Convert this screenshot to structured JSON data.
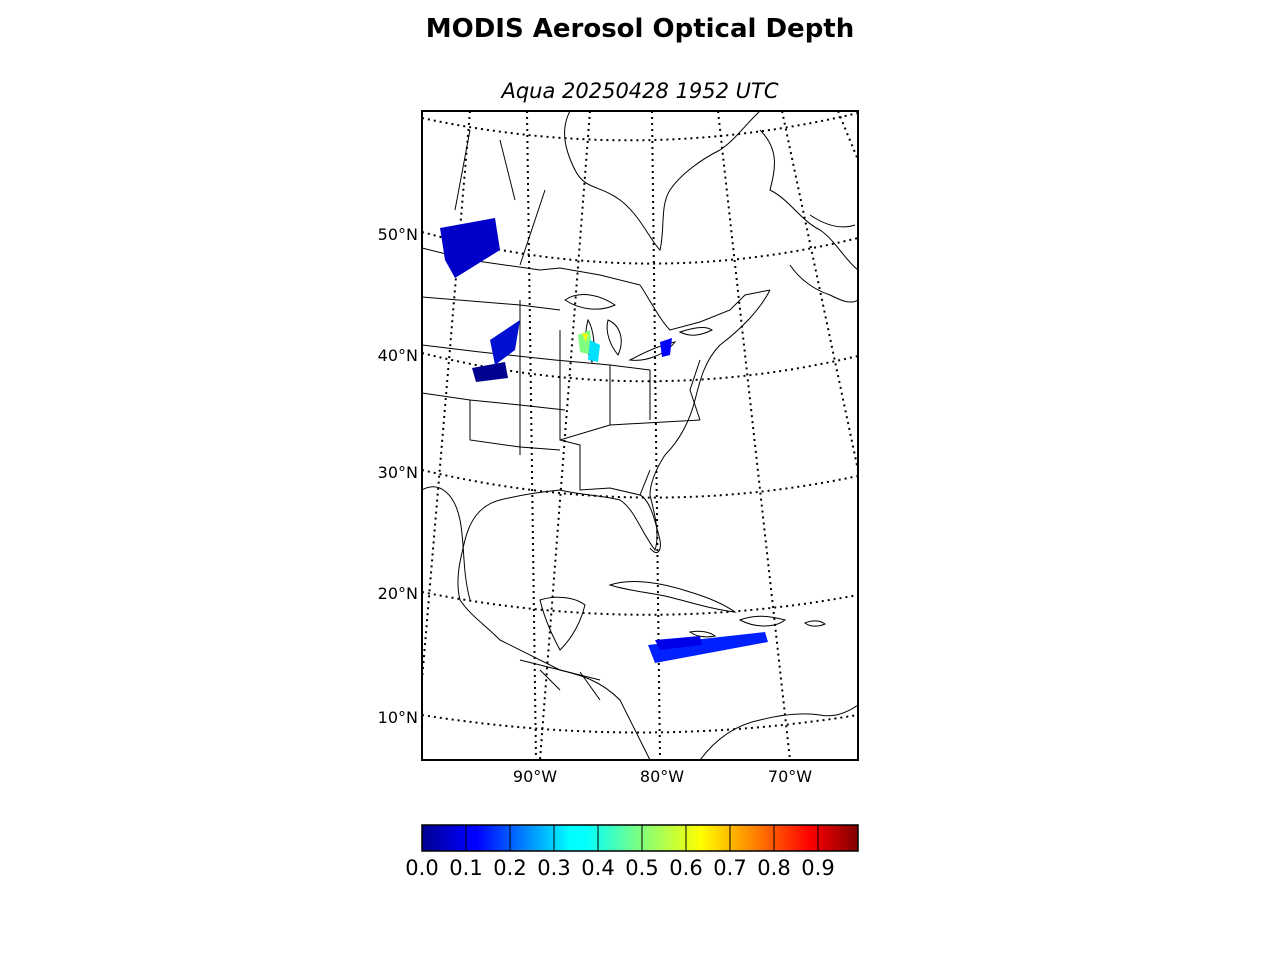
{
  "title": "MODIS Aerosol Optical Depth",
  "subtitle": "Aqua 20250428 1952 UTC",
  "lat_labels": [
    "50°N",
    "40°N",
    "30°N",
    "20°N",
    "10°N"
  ],
  "lon_labels": [
    "90°W",
    "80°W",
    "70°W"
  ],
  "colorbar": {
    "labels": [
      "0.0",
      "0.1",
      "0.2",
      "0.3",
      "0.4",
      "0.5",
      "0.6",
      "0.7",
      "0.8",
      "0.9"
    ],
    "min": 0.0,
    "max": 1.0,
    "colormap": "jet"
  },
  "colors": {
    "land_outline": "#000000",
    "aod_low": "#0000c8",
    "aod_mid": "#00ffff",
    "aod_high": "#ffff00"
  }
}
